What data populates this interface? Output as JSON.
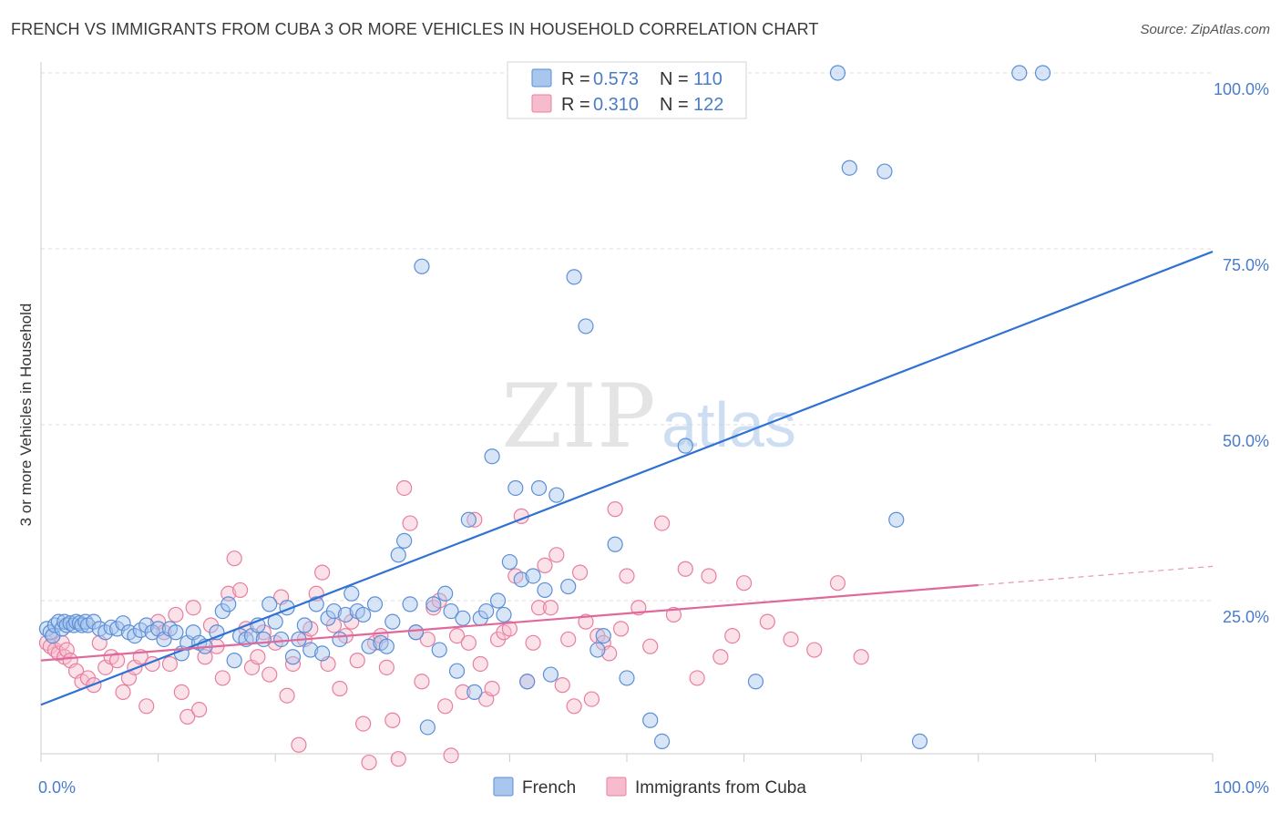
{
  "title": "FRENCH VS IMMIGRANTS FROM CUBA 3 OR MORE VEHICLES IN HOUSEHOLD CORRELATION CHART",
  "source": "Source: ZipAtlas.com",
  "watermark": {
    "zip": "ZIP",
    "atlas": "atlas"
  },
  "colors": {
    "french": "#5b8fd6",
    "french_fill": "#a9c6ee",
    "cuba": "#e87fa0",
    "cuba_fill": "#f6bccd",
    "french_line": "#2f72d3",
    "cuba_line": "#e0689a",
    "tick_text": "#4a7cc9",
    "grid": "#dddddd"
  },
  "legend": {
    "rows": [
      {
        "r_label": "R = ",
        "r_value": "0.573",
        "n_label": "N = ",
        "n_value": "110"
      },
      {
        "r_label": "R = ",
        "r_value": "0.310",
        "n_label": "N = ",
        "n_value": "122"
      }
    ]
  },
  "chart_data": {
    "type": "scatter",
    "title": "FRENCH VS IMMIGRANTS FROM CUBA 3 OR MORE VEHICLES IN HOUSEHOLD CORRELATION CHART",
    "xlabel": "",
    "ylabel": "3 or more Vehicles in Household",
    "xlim": [
      0,
      100
    ],
    "ylim": [
      0,
      100
    ],
    "x_tick_labels": [
      "0.0%",
      "100.0%"
    ],
    "y_ticks": [
      25,
      50,
      75,
      100
    ],
    "y_tick_labels": [
      "25.0%",
      "50.0%",
      "75.0%",
      "100.0%"
    ],
    "grid": true,
    "legend_position": "top-center",
    "series": [
      {
        "name": "French",
        "r": 0.573,
        "n": 110,
        "trend": {
          "x": [
            0,
            100
          ],
          "y": [
            10.2,
            74.6
          ]
        },
        "points": [
          [
            0.5,
            21
          ],
          [
            0.8,
            20.5
          ],
          [
            1,
            20
          ],
          [
            1.2,
            21.5
          ],
          [
            1.5,
            22
          ],
          [
            1.8,
            21
          ],
          [
            2,
            22
          ],
          [
            2.2,
            21.5
          ],
          [
            2.5,
            21.8
          ],
          [
            2.8,
            21.5
          ],
          [
            3,
            22
          ],
          [
            3.3,
            21.8
          ],
          [
            3.5,
            21.5
          ],
          [
            3.8,
            22
          ],
          [
            4,
            21.5
          ],
          [
            4.5,
            22
          ],
          [
            5,
            21
          ],
          [
            5.5,
            20.5
          ],
          [
            6,
            21.2
          ],
          [
            6.5,
            21
          ],
          [
            7,
            21.8
          ],
          [
            7.5,
            20.5
          ],
          [
            8,
            20
          ],
          [
            8.5,
            20.8
          ],
          [
            9,
            21.5
          ],
          [
            9.5,
            20.5
          ],
          [
            10,
            21
          ],
          [
            10.5,
            19.5
          ],
          [
            11,
            21
          ],
          [
            11.5,
            20.5
          ],
          [
            12,
            17.5
          ],
          [
            12.5,
            19
          ],
          [
            13,
            20.5
          ],
          [
            13.5,
            19
          ],
          [
            14,
            18.5
          ],
          [
            15,
            20.5
          ],
          [
            15.5,
            23.5
          ],
          [
            16,
            24.5
          ],
          [
            16.5,
            16.5
          ],
          [
            17,
            20
          ],
          [
            17.5,
            19.5
          ],
          [
            18,
            20
          ],
          [
            18.5,
            21.5
          ],
          [
            19,
            19.5
          ],
          [
            19.5,
            24.5
          ],
          [
            20,
            22
          ],
          [
            20.5,
            19.5
          ],
          [
            21,
            24
          ],
          [
            21.5,
            17
          ],
          [
            22,
            19.5
          ],
          [
            22.5,
            21.5
          ],
          [
            23,
            18
          ],
          [
            23.5,
            24.5
          ],
          [
            24,
            17.5
          ],
          [
            24.5,
            22.5
          ],
          [
            25,
            23.5
          ],
          [
            25.5,
            19.5
          ],
          [
            26,
            23
          ],
          [
            26.5,
            26
          ],
          [
            27,
            23.5
          ],
          [
            27.5,
            23
          ],
          [
            28,
            18.5
          ],
          [
            28.5,
            24.5
          ],
          [
            29,
            19
          ],
          [
            29.5,
            18.5
          ],
          [
            30,
            22
          ],
          [
            30.5,
            31.5
          ],
          [
            31,
            33.5
          ],
          [
            31.5,
            24.5
          ],
          [
            32,
            20.5
          ],
          [
            32.5,
            72.5
          ],
          [
            33,
            7
          ],
          [
            33.5,
            24.5
          ],
          [
            34,
            18
          ],
          [
            34.5,
            26
          ],
          [
            35,
            23.5
          ],
          [
            35.5,
            15
          ],
          [
            36,
            22.5
          ],
          [
            36.5,
            36.5
          ],
          [
            37,
            12
          ],
          [
            37.5,
            22.5
          ],
          [
            38,
            23.5
          ],
          [
            38.5,
            45.5
          ],
          [
            39,
            25
          ],
          [
            39.5,
            23
          ],
          [
            40,
            30.5
          ],
          [
            40.5,
            41
          ],
          [
            41,
            28
          ],
          [
            41.5,
            13.5
          ],
          [
            42,
            28.5
          ],
          [
            42.5,
            41
          ],
          [
            43,
            26.5
          ],
          [
            43.5,
            14.5
          ],
          [
            44,
            40
          ],
          [
            45,
            27
          ],
          [
            45.5,
            71
          ],
          [
            46.5,
            64
          ],
          [
            47.5,
            18
          ],
          [
            48,
            20
          ],
          [
            49,
            33
          ],
          [
            50,
            14
          ],
          [
            52,
            8
          ],
          [
            53,
            5
          ],
          [
            55,
            47
          ],
          [
            59,
            100
          ],
          [
            61,
            13.5
          ],
          [
            68,
            100
          ],
          [
            69,
            86.5
          ],
          [
            72,
            86
          ],
          [
            73,
            36.5
          ],
          [
            75,
            5
          ],
          [
            83.5,
            100
          ],
          [
            85.5,
            100
          ]
        ]
      },
      {
        "name": "Immigrants from Cuba",
        "r": 0.31,
        "n": 122,
        "trend": {
          "x": [
            0,
            80
          ],
          "y": [
            16.5,
            27.2
          ]
        },
        "points": [
          [
            0.5,
            19
          ],
          [
            0.8,
            18.5
          ],
          [
            1,
            20
          ],
          [
            1.2,
            18
          ],
          [
            1.5,
            17.5
          ],
          [
            1.8,
            19
          ],
          [
            2,
            17
          ],
          [
            2.2,
            18
          ],
          [
            2.5,
            16.5
          ],
          [
            3,
            15
          ],
          [
            3.5,
            13.5
          ],
          [
            4,
            14
          ],
          [
            4.5,
            13
          ],
          [
            5,
            19
          ],
          [
            5.5,
            15.5
          ],
          [
            6,
            17
          ],
          [
            6.5,
            16.5
          ],
          [
            7,
            12
          ],
          [
            7.5,
            14
          ],
          [
            8,
            15.5
          ],
          [
            8.5,
            17
          ],
          [
            9,
            10
          ],
          [
            9.5,
            16
          ],
          [
            10,
            22
          ],
          [
            10.5,
            20.5
          ],
          [
            11,
            16
          ],
          [
            11.5,
            23
          ],
          [
            12,
            12
          ],
          [
            12.5,
            8.5
          ],
          [
            13,
            24
          ],
          [
            13.5,
            9.5
          ],
          [
            14,
            17
          ],
          [
            14.5,
            21.5
          ],
          [
            15,
            18.5
          ],
          [
            15.5,
            14
          ],
          [
            16,
            26
          ],
          [
            16.5,
            31
          ],
          [
            17,
            26.5
          ],
          [
            17.5,
            21
          ],
          [
            18,
            15.5
          ],
          [
            18.5,
            17
          ],
          [
            19,
            20.5
          ],
          [
            19.5,
            14.5
          ],
          [
            20,
            19
          ],
          [
            20.5,
            25.5
          ],
          [
            21,
            11.5
          ],
          [
            21.5,
            16
          ],
          [
            22,
            4.5
          ],
          [
            22.5,
            19.5
          ],
          [
            23,
            21
          ],
          [
            23.5,
            26
          ],
          [
            24,
            29
          ],
          [
            24.5,
            16
          ],
          [
            25,
            21.5
          ],
          [
            25.5,
            12.5
          ],
          [
            26,
            20
          ],
          [
            26.5,
            22
          ],
          [
            27,
            16.5
          ],
          [
            27.5,
            7.5
          ],
          [
            28,
            2
          ],
          [
            28.5,
            19
          ],
          [
            29,
            20
          ],
          [
            29.5,
            15.5
          ],
          [
            30,
            8
          ],
          [
            30.5,
            2.5
          ],
          [
            31,
            41
          ],
          [
            31.5,
            36
          ],
          [
            32,
            20.5
          ],
          [
            32.5,
            13.5
          ],
          [
            33,
            19.5
          ],
          [
            33.5,
            24
          ],
          [
            34,
            25
          ],
          [
            34.5,
            10
          ],
          [
            35,
            3
          ],
          [
            35.5,
            20
          ],
          [
            36,
            12
          ],
          [
            36.5,
            19
          ],
          [
            37,
            36.5
          ],
          [
            37.5,
            16
          ],
          [
            38,
            11
          ],
          [
            38.5,
            12.5
          ],
          [
            39,
            19.5
          ],
          [
            39.5,
            20.5
          ],
          [
            40,
            21
          ],
          [
            40.5,
            28.5
          ],
          [
            41,
            37
          ],
          [
            41.5,
            13.5
          ],
          [
            42,
            19
          ],
          [
            42.5,
            24
          ],
          [
            43,
            30
          ],
          [
            43.5,
            24
          ],
          [
            44,
            31.5
          ],
          [
            44.5,
            13
          ],
          [
            45,
            19.5
          ],
          [
            45.5,
            10
          ],
          [
            46,
            29
          ],
          [
            46.5,
            22
          ],
          [
            47,
            11
          ],
          [
            47.5,
            20
          ],
          [
            48,
            19
          ],
          [
            48.5,
            17.5
          ],
          [
            49,
            38
          ],
          [
            49.5,
            21
          ],
          [
            50,
            28.5
          ],
          [
            51,
            24
          ],
          [
            52,
            18.5
          ],
          [
            53,
            36
          ],
          [
            54,
            23
          ],
          [
            55,
            29.5
          ],
          [
            56,
            14
          ],
          [
            57,
            28.5
          ],
          [
            58,
            17
          ],
          [
            59,
            20
          ],
          [
            60,
            27.5
          ],
          [
            62,
            22
          ],
          [
            64,
            19.5
          ],
          [
            66,
            18
          ],
          [
            68,
            27.5
          ],
          [
            70,
            17
          ]
        ]
      }
    ]
  },
  "bottom_legend": [
    {
      "label": "French"
    },
    {
      "label": "Immigrants from Cuba"
    }
  ]
}
